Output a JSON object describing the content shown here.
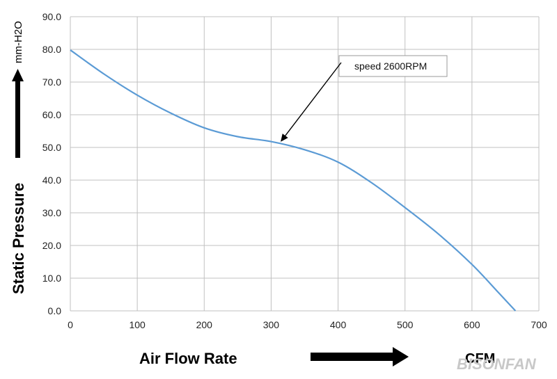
{
  "chart_data": {
    "type": "line",
    "title": "",
    "xlabel": "Air  Flow  Rate",
    "xunit": "CFM",
    "ylabel": "Static   Pressure",
    "yunit": "mm-H2O",
    "xlim": [
      0,
      700
    ],
    "ylim": [
      0,
      90
    ],
    "xticks": [
      "0",
      "100",
      "200",
      "300",
      "400",
      "500",
      "600",
      "700"
    ],
    "yticks": [
      "0.0",
      "10.0",
      "20.0",
      "30.0",
      "40.0",
      "50.0",
      "60.0",
      "70.0",
      "80.0",
      "90.0"
    ],
    "grid": true,
    "series": [
      {
        "name": "",
        "color": "#5b9bd5",
        "x": [
          0,
          50,
          100,
          150,
          200,
          250,
          300,
          350,
          400,
          450,
          500,
          550,
          600,
          640,
          665
        ],
        "y": [
          79.8,
          72.5,
          66,
          60.5,
          56,
          53.3,
          51.8,
          49.3,
          45.5,
          39.2,
          31.6,
          23.5,
          14.2,
          5.5,
          0
        ]
      }
    ],
    "annotation": {
      "text": "speed  2600RPM",
      "x": 310,
      "y": 51.3
    }
  },
  "watermark": "BISONFAN"
}
